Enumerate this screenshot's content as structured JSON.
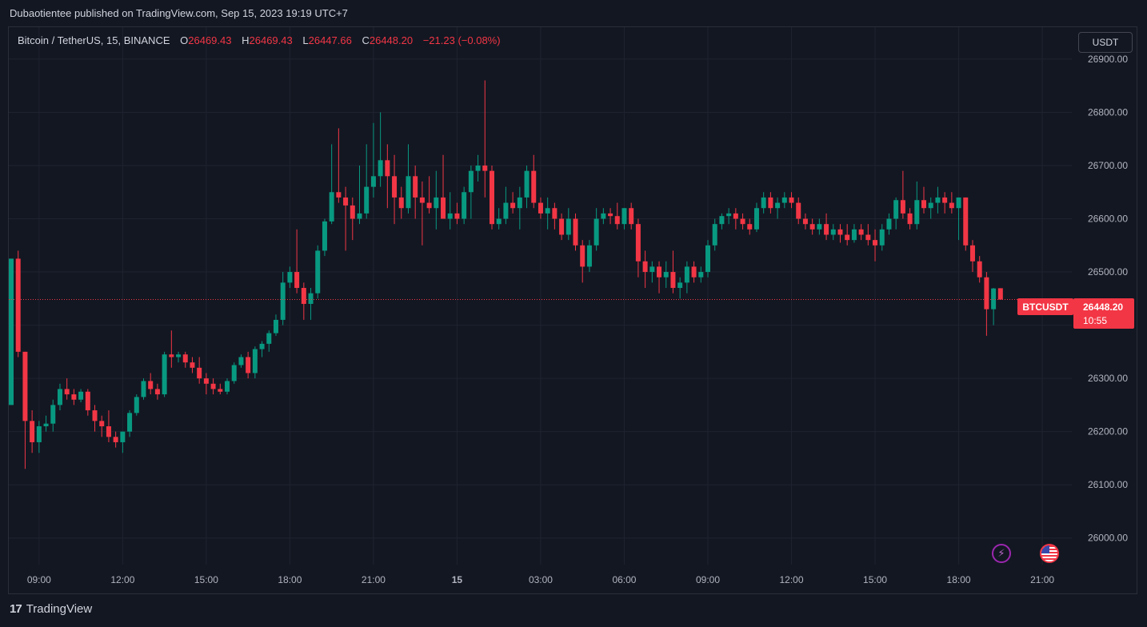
{
  "header": {
    "published": "Dubaotientee published on TradingView.com, Sep 15, 2023 19:19 UTC+7"
  },
  "legend": {
    "symbol": "Bitcoin / TetherUS, 15, BINANCE",
    "o_label": "O",
    "o_value": "26469.43",
    "h_label": "H",
    "h_value": "26469.43",
    "l_label": "L",
    "l_value": "26447.66",
    "c_label": "C",
    "c_value": "26448.20",
    "change": "−21.23 (−0.08%)"
  },
  "currency_button": "USDT",
  "price_tag": {
    "label": "BTCUSDT",
    "price": "26448.20",
    "countdown": "10:55"
  },
  "footer": {
    "brand": "TradingView"
  },
  "icons": {
    "bolt": "lightning-icon",
    "flag": "us-flag-icon"
  },
  "colors": {
    "up": "#089981",
    "down": "#f23645",
    "background": "#131722",
    "grid": "#1f2330"
  },
  "chart_data": {
    "type": "candlestick",
    "interval": "15m",
    "ylim": [
      25950,
      26960
    ],
    "y_ticks": [
      26000,
      26100,
      26200,
      26300,
      26400,
      26500,
      26600,
      26700,
      26800,
      26900
    ],
    "y_tick_labels": [
      "26000.00",
      "26100.00",
      "26200.00",
      "26300.00",
      "26400.00",
      "26500.00",
      "26600.00",
      "26700.00",
      "26800.00",
      "26900.00"
    ],
    "x_ticks": [
      {
        "label": "09:00",
        "bar": 4
      },
      {
        "label": "12:00",
        "bar": 16
      },
      {
        "label": "15:00",
        "bar": 28
      },
      {
        "label": "18:00",
        "bar": 40
      },
      {
        "label": "21:00",
        "bar": 52
      },
      {
        "label": "15",
        "bar": 64,
        "bold": true
      },
      {
        "label": "03:00",
        "bar": 76
      },
      {
        "label": "06:00",
        "bar": 88
      },
      {
        "label": "09:00",
        "bar": 100
      },
      {
        "label": "12:00",
        "bar": 112
      },
      {
        "label": "15:00",
        "bar": 124
      },
      {
        "label": "18:00",
        "bar": 136
      },
      {
        "label": "21:00",
        "bar": 148
      }
    ],
    "last_price": 26448.2,
    "candles": [
      [
        26250,
        26525,
        26250,
        26525
      ],
      [
        26525,
        26540,
        26340,
        26350
      ],
      [
        26350,
        26350,
        26130,
        26220
      ],
      [
        26220,
        26240,
        26160,
        26180
      ],
      [
        26180,
        26220,
        26160,
        26210
      ],
      [
        26210,
        26230,
        26200,
        26215
      ],
      [
        26215,
        26260,
        26200,
        26250
      ],
      [
        26250,
        26290,
        26240,
        26280
      ],
      [
        26280,
        26300,
        26260,
        26270
      ],
      [
        26270,
        26280,
        26250,
        26260
      ],
      [
        26260,
        26280,
        26255,
        26275
      ],
      [
        26275,
        26280,
        26230,
        26240
      ],
      [
        26240,
        26250,
        26200,
        26220
      ],
      [
        26220,
        26230,
        26190,
        26210
      ],
      [
        26210,
        26240,
        26180,
        26190
      ],
      [
        26190,
        26200,
        26170,
        26180
      ],
      [
        26180,
        26200,
        26160,
        26200
      ],
      [
        26200,
        26240,
        26190,
        26235
      ],
      [
        26235,
        26270,
        26230,
        26265
      ],
      [
        26265,
        26300,
        26260,
        26295
      ],
      [
        26295,
        26310,
        26270,
        26280
      ],
      [
        26280,
        26290,
        26260,
        26270
      ],
      [
        26270,
        26350,
        26265,
        26345
      ],
      [
        26345,
        26390,
        26320,
        26340
      ],
      [
        26340,
        26350,
        26330,
        26345
      ],
      [
        26345,
        26350,
        26320,
        26330
      ],
      [
        26330,
        26340,
        26310,
        26320
      ],
      [
        26320,
        26340,
        26290,
        26300
      ],
      [
        26300,
        26310,
        26270,
        26290
      ],
      [
        26290,
        26300,
        26270,
        26280
      ],
      [
        26280,
        26290,
        26270,
        26275
      ],
      [
        26275,
        26300,
        26270,
        26295
      ],
      [
        26295,
        26330,
        26290,
        26325
      ],
      [
        26325,
        26345,
        26320,
        26340
      ],
      [
        26340,
        26350,
        26300,
        26310
      ],
      [
        26310,
        26360,
        26300,
        26355
      ],
      [
        26355,
        26370,
        26340,
        26365
      ],
      [
        26365,
        26390,
        26350,
        26385
      ],
      [
        26385,
        26420,
        26380,
        26410
      ],
      [
        26410,
        26500,
        26400,
        26480
      ],
      [
        26480,
        26510,
        26470,
        26500
      ],
      [
        26500,
        26580,
        26460,
        26470
      ],
      [
        26470,
        26480,
        26410,
        26440
      ],
      [
        26440,
        26470,
        26410,
        26460
      ],
      [
        26460,
        26550,
        26450,
        26540
      ],
      [
        26540,
        26600,
        26530,
        26595
      ],
      [
        26595,
        26740,
        26590,
        26650
      ],
      [
        26650,
        26770,
        26630,
        26640
      ],
      [
        26640,
        26660,
        26540,
        26625
      ],
      [
        26625,
        26640,
        26560,
        26600
      ],
      [
        26600,
        26700,
        26590,
        26610
      ],
      [
        26610,
        26740,
        26600,
        26660
      ],
      [
        26660,
        26780,
        26640,
        26680
      ],
      [
        26680,
        26800,
        26660,
        26710
      ],
      [
        26710,
        26740,
        26620,
        26680
      ],
      [
        26680,
        26720,
        26590,
        26640
      ],
      [
        26640,
        26660,
        26600,
        26620
      ],
      [
        26620,
        26740,
        26610,
        26680
      ],
      [
        26680,
        26700,
        26600,
        26640
      ],
      [
        26640,
        26670,
        26550,
        26630
      ],
      [
        26630,
        26680,
        26610,
        26620
      ],
      [
        26620,
        26690,
        26580,
        26640
      ],
      [
        26640,
        26720,
        26600,
        26600
      ],
      [
        26600,
        26650,
        26580,
        26610
      ],
      [
        26610,
        26630,
        26590,
        26600
      ],
      [
        26600,
        26660,
        26590,
        26650
      ],
      [
        26650,
        26700,
        26600,
        26690
      ],
      [
        26690,
        26720,
        26670,
        26700
      ],
      [
        26700,
        26860,
        26640,
        26690
      ],
      [
        26690,
        26700,
        26580,
        26590
      ],
      [
        26590,
        26620,
        26580,
        26600
      ],
      [
        26600,
        26660,
        26590,
        26630
      ],
      [
        26630,
        26650,
        26610,
        26620
      ],
      [
        26620,
        26660,
        26580,
        26640
      ],
      [
        26640,
        26700,
        26620,
        26690
      ],
      [
        26690,
        26720,
        26620,
        26630
      ],
      [
        26630,
        26640,
        26600,
        26610
      ],
      [
        26610,
        26640,
        26580,
        26620
      ],
      [
        26620,
        26630,
        26580,
        26600
      ],
      [
        26600,
        26610,
        26560,
        26570
      ],
      [
        26570,
        26620,
        26560,
        26600
      ],
      [
        26600,
        26610,
        26540,
        26550
      ],
      [
        26550,
        26560,
        26480,
        26510
      ],
      [
        26510,
        26560,
        26500,
        26550
      ],
      [
        26550,
        26620,
        26540,
        26600
      ],
      [
        26600,
        26620,
        26590,
        26610
      ],
      [
        26610,
        26620,
        26590,
        26605
      ],
      [
        26605,
        26630,
        26580,
        26590
      ],
      [
        26590,
        26620,
        26580,
        26620
      ],
      [
        26620,
        26630,
        26580,
        26590
      ],
      [
        26590,
        26600,
        26490,
        26520
      ],
      [
        26520,
        26540,
        26470,
        26500
      ],
      [
        26500,
        26520,
        26480,
        26510
      ],
      [
        26510,
        26520,
        26460,
        26490
      ],
      [
        26490,
        26520,
        26470,
        26500
      ],
      [
        26500,
        26540,
        26460,
        26470
      ],
      [
        26470,
        26490,
        26450,
        26480
      ],
      [
        26480,
        26520,
        26460,
        26510
      ],
      [
        26510,
        26520,
        26480,
        26490
      ],
      [
        26490,
        26510,
        26480,
        26500
      ],
      [
        26500,
        26560,
        26490,
        26550
      ],
      [
        26550,
        26600,
        26540,
        26590
      ],
      [
        26590,
        26610,
        26580,
        26605
      ],
      [
        26605,
        26620,
        26590,
        26610
      ],
      [
        26610,
        26620,
        26580,
        26600
      ],
      [
        26600,
        26610,
        26580,
        26590
      ],
      [
        26590,
        26600,
        26570,
        26580
      ],
      [
        26580,
        26630,
        26575,
        26620
      ],
      [
        26620,
        26650,
        26610,
        26640
      ],
      [
        26640,
        26650,
        26610,
        26620
      ],
      [
        26620,
        26640,
        26600,
        26630
      ],
      [
        26630,
        26650,
        26620,
        26640
      ],
      [
        26640,
        26650,
        26620,
        26630
      ],
      [
        26630,
        26640,
        26590,
        26600
      ],
      [
        26600,
        26610,
        26580,
        26590
      ],
      [
        26590,
        26600,
        26570,
        26580
      ],
      [
        26580,
        26600,
        26570,
        26590
      ],
      [
        26590,
        26610,
        26560,
        26570
      ],
      [
        26570,
        26590,
        26560,
        26580
      ],
      [
        26580,
        26590,
        26555,
        26570
      ],
      [
        26570,
        26590,
        26550,
        26560
      ],
      [
        26560,
        26590,
        26555,
        26580
      ],
      [
        26580,
        26590,
        26560,
        26570
      ],
      [
        26570,
        26590,
        26550,
        26560
      ],
      [
        26560,
        26580,
        26520,
        26550
      ],
      [
        26550,
        26590,
        26540,
        26580
      ],
      [
        26580,
        26610,
        26570,
        26600
      ],
      [
        26600,
        26640,
        26580,
        26635
      ],
      [
        26635,
        26690,
        26600,
        26610
      ],
      [
        26610,
        26620,
        26580,
        26590
      ],
      [
        26590,
        26670,
        26580,
        26635
      ],
      [
        26635,
        26660,
        26610,
        26620
      ],
      [
        26620,
        26640,
        26600,
        26630
      ],
      [
        26630,
        26660,
        26610,
        26640
      ],
      [
        26640,
        26650,
        26610,
        26630
      ],
      [
        26630,
        26650,
        26610,
        26620
      ],
      [
        26620,
        26640,
        26560,
        26640
      ],
      [
        26640,
        26640,
        26540,
        26550
      ],
      [
        26550,
        26560,
        26500,
        26520
      ],
      [
        26520,
        26530,
        26480,
        26490
      ],
      [
        26490,
        26500,
        26380,
        26430
      ],
      [
        26430,
        26470,
        26400,
        26469
      ],
      [
        26469.43,
        26469.43,
        26447.66,
        26448.2
      ]
    ]
  }
}
